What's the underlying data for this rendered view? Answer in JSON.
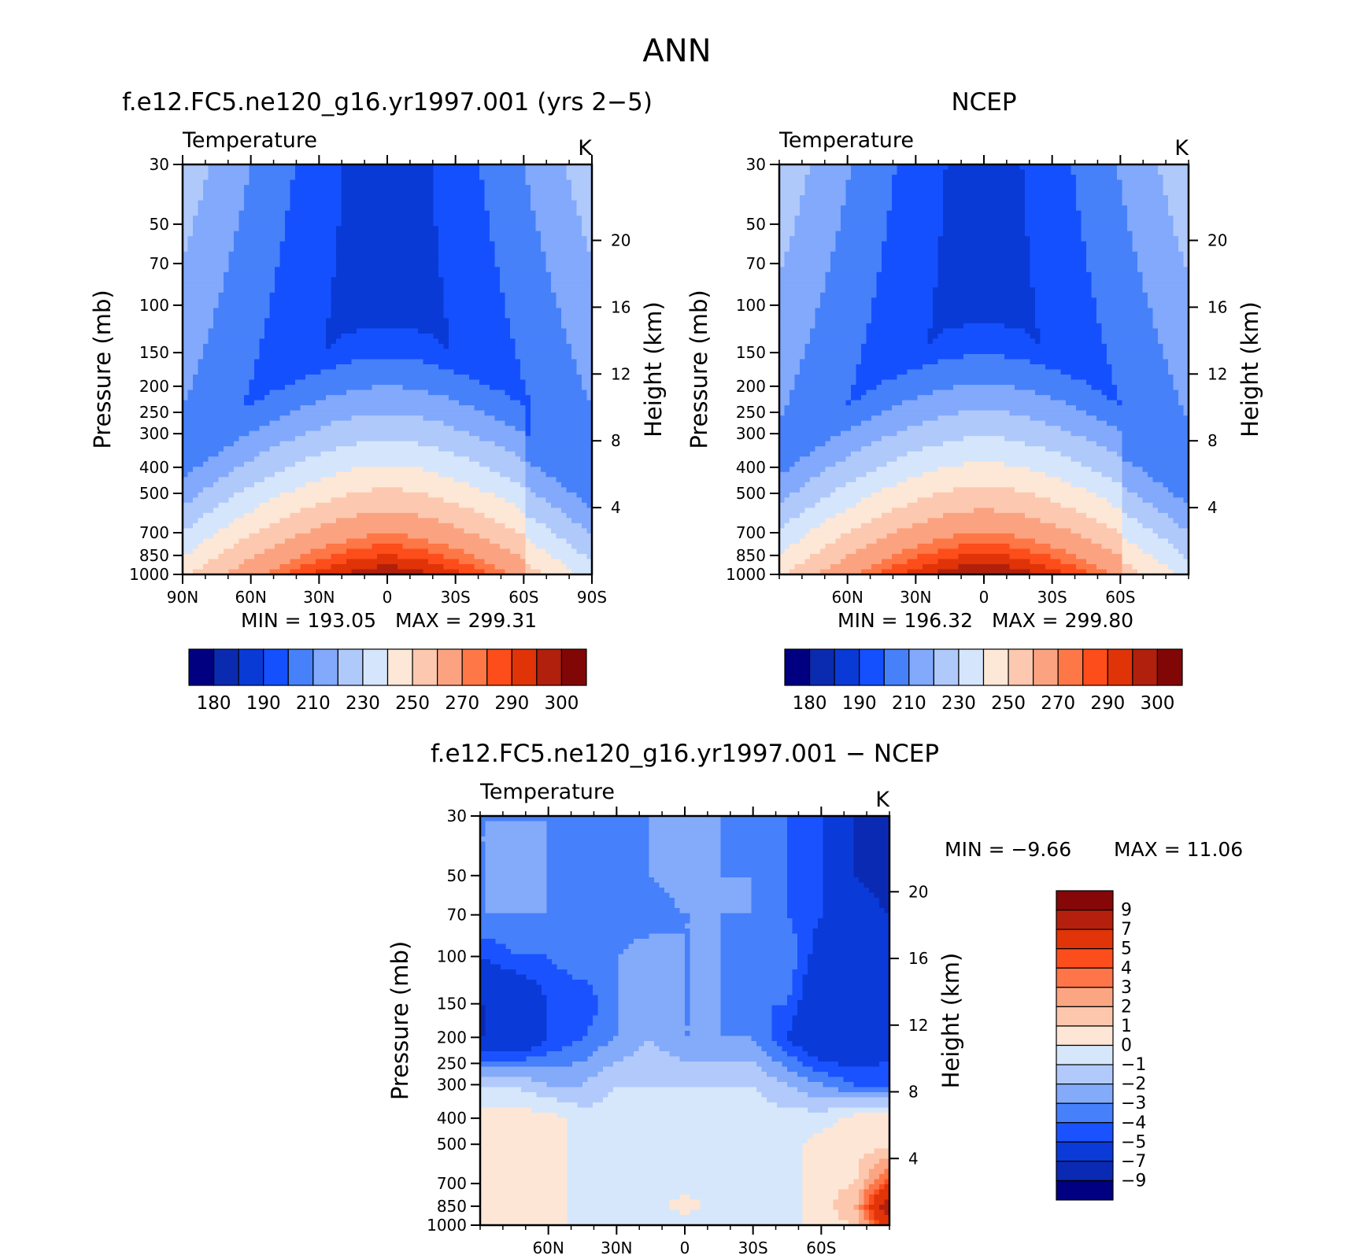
{
  "figure_title": "ANN",
  "colors": {
    "abs_palette": [
      "#000080",
      "#0a2bb0",
      "#0a3ad6",
      "#1550ff",
      "#4681fa",
      "#82a9fb",
      "#b0c9fb",
      "#d5e6fc",
      "#fde7d6",
      "#fcc8b0",
      "#fba381",
      "#fd7747",
      "#fc4d1b",
      "#e03307",
      "#b11f0d",
      "#810707"
    ],
    "diff_palette": [
      "#000080",
      "#0b2ab4",
      "#0a3ad8",
      "#1a52ff",
      "#4680fa",
      "#84aafa",
      "#b2cafb",
      "#d6e7fc",
      "#fde6d6",
      "#fcc7ad",
      "#fba582",
      "#fd7548",
      "#fc4e1c",
      "#e13408",
      "#b41f0e",
      "#850707"
    ]
  },
  "chart_data": [
    {
      "type": "heatmap",
      "title": "f.e12.FC5.ne120_g16.yr1997.001 (yrs 2−5)",
      "left_label": "Temperature",
      "right_label": "K",
      "ylabel": "Pressure (mb)",
      "ylabel_right": "Height (km)",
      "yscale": "log",
      "y_inverted": true,
      "ylim": [
        30,
        1000
      ],
      "xlim": [
        90,
        -90
      ],
      "x_tick_values": [
        90,
        60,
        30,
        0,
        -30,
        -60,
        -90
      ],
      "x_tick_labels": [
        "90N",
        "60N",
        "30N",
        "0",
        "30S",
        "60S",
        "90S"
      ],
      "y_ticks": [
        30,
        50,
        70,
        100,
        150,
        200,
        250,
        300,
        400,
        500,
        700,
        850,
        1000
      ],
      "height_ticks": [
        4,
        8,
        12,
        16,
        20
      ],
      "min_label": "MIN = 193.05",
      "max_label": "MAX = 299.31",
      "min": 193.05,
      "max": 299.31,
      "colorbar": {
        "orientation": "horizontal",
        "tick_labels": [
          "180",
          "190",
          "210",
          "230",
          "250",
          "270",
          "290",
          "300"
        ]
      },
      "profile_levels": [
        30,
        50,
        70,
        100,
        150,
        200,
        250,
        300,
        400,
        500,
        700,
        850,
        1000
      ],
      "profile_bins": [
        5,
        5,
        4,
        4,
        4,
        5,
        6,
        7,
        8,
        9,
        10,
        11,
        12
      ]
    },
    {
      "type": "heatmap",
      "title": "NCEP",
      "left_label": "Temperature",
      "right_label": "K",
      "ylabel": "Pressure (mb)",
      "ylabel_right": "Height (km)",
      "yscale": "log",
      "y_inverted": true,
      "ylim": [
        30,
        1000
      ],
      "xlim": [
        90,
        -90
      ],
      "x_tick_values": [
        60,
        30,
        0,
        -30,
        -60
      ],
      "x_tick_labels": [
        "60N",
        "30N",
        "0",
        "30S",
        "60S"
      ],
      "y_ticks": [
        30,
        50,
        70,
        100,
        150,
        200,
        250,
        300,
        400,
        500,
        700,
        850,
        1000
      ],
      "height_ticks": [
        4,
        8,
        12,
        16,
        20
      ],
      "min_label": "MIN = 196.32",
      "max_label": "MAX = 299.80",
      "min": 196.32,
      "max": 299.8,
      "colorbar": {
        "orientation": "horizontal",
        "tick_labels": [
          "180",
          "190",
          "210",
          "230",
          "250",
          "270",
          "290",
          "300"
        ]
      },
      "profile_levels": [
        30,
        50,
        70,
        100,
        150,
        200,
        250,
        300,
        400,
        500,
        700,
        850,
        1000
      ],
      "profile_bins": [
        5,
        5,
        4,
        4,
        4,
        5,
        6,
        7,
        8,
        9,
        10,
        11,
        12
      ]
    },
    {
      "type": "heatmap",
      "title": "f.e12.FC5.ne120_g16.yr1997.001 − NCEP",
      "left_label": "Temperature",
      "right_label": "K",
      "ylabel": "Pressure (mb)",
      "ylabel_right": "Height (km)",
      "yscale": "log",
      "y_inverted": true,
      "ylim": [
        30,
        1000
      ],
      "xlim": [
        90,
        -90
      ],
      "x_tick_values": [
        60,
        30,
        0,
        -30,
        -60
      ],
      "x_tick_labels": [
        "60N",
        "30N",
        "0",
        "30S",
        "60S"
      ],
      "y_ticks": [
        30,
        50,
        70,
        100,
        150,
        200,
        250,
        300,
        400,
        500,
        700,
        850,
        1000
      ],
      "height_ticks": [
        4,
        8,
        12,
        16,
        20
      ],
      "min_label": "MIN = −9.66",
      "max_label": "MAX = 11.06",
      "min": -9.66,
      "max": 11.06,
      "colorbar": {
        "orientation": "vertical",
        "tick_labels": [
          "9",
          "7",
          "5",
          "4",
          "3",
          "2",
          "1",
          "0",
          "−1",
          "−2",
          "−3",
          "−4",
          "−5",
          "−7",
          "−9"
        ]
      },
      "levels": [
        -9,
        -7,
        -5,
        -4,
        -3,
        -2,
        -1,
        0,
        1,
        2,
        3,
        4,
        5,
        7,
        9
      ],
      "grid_lat": [
        90,
        75,
        60,
        45,
        30,
        15,
        0,
        -15,
        -30,
        -45,
        -60,
        -75,
        -90
      ],
      "grid_levels": [
        30,
        50,
        70,
        100,
        150,
        200,
        300,
        400,
        500,
        700,
        850,
        1000
      ],
      "grid_values": [
        [
          -3,
          -3,
          -3,
          -4,
          -4,
          -3,
          -2,
          -3,
          -4,
          -4,
          -5,
          -7,
          -9
        ],
        [
          -3,
          -3,
          -3,
          -4,
          -4,
          -3,
          -2,
          -3,
          -3,
          -4,
          -5,
          -7,
          -8
        ],
        [
          -3,
          -3,
          -3,
          -4,
          -4,
          -4,
          -3,
          -3,
          -3,
          -4,
          -5,
          -6,
          -7
        ],
        [
          -5,
          -4,
          -4,
          -3,
          -3,
          -2,
          -3,
          -3,
          -4,
          -3,
          -6,
          -6,
          -7
        ],
        [
          -7,
          -7,
          -5,
          -5,
          -3,
          -2,
          -3,
          -3,
          -4,
          -4,
          -7,
          -7,
          -6
        ],
        [
          -7,
          -7,
          -5,
          -4,
          -3,
          -2,
          -3,
          -3,
          -3,
          -5,
          -7,
          -7,
          -6
        ],
        [
          -1,
          -1,
          -2,
          -2,
          -1,
          -1,
          -1,
          -1,
          -1,
          -2,
          -3,
          -4,
          -4
        ],
        [
          0.5,
          0.5,
          0.5,
          -0.5,
          -0.5,
          -0.5,
          -0.5,
          -0.5,
          -0.5,
          -0.5,
          -0.5,
          0.5,
          0.5
        ],
        [
          0.5,
          0.5,
          0.5,
          -0.5,
          -0.5,
          -0.5,
          -0.5,
          -0.5,
          -0.5,
          -0.5,
          0.5,
          0.5,
          0.5
        ],
        [
          1,
          0.5,
          0.5,
          -0.5,
          -0.5,
          -0.5,
          -0.5,
          -0.5,
          -0.5,
          -0.5,
          0.5,
          1,
          5
        ],
        [
          1,
          0.5,
          0.5,
          -0.5,
          -0.5,
          -0.5,
          0.5,
          -0.5,
          -1,
          -0.5,
          0.5,
          2,
          9
        ],
        [
          0.5,
          0.5,
          0.5,
          -0.5,
          -0.5,
          -1,
          -0.5,
          -1,
          -1,
          -0.5,
          0.5,
          1,
          6
        ]
      ]
    }
  ]
}
